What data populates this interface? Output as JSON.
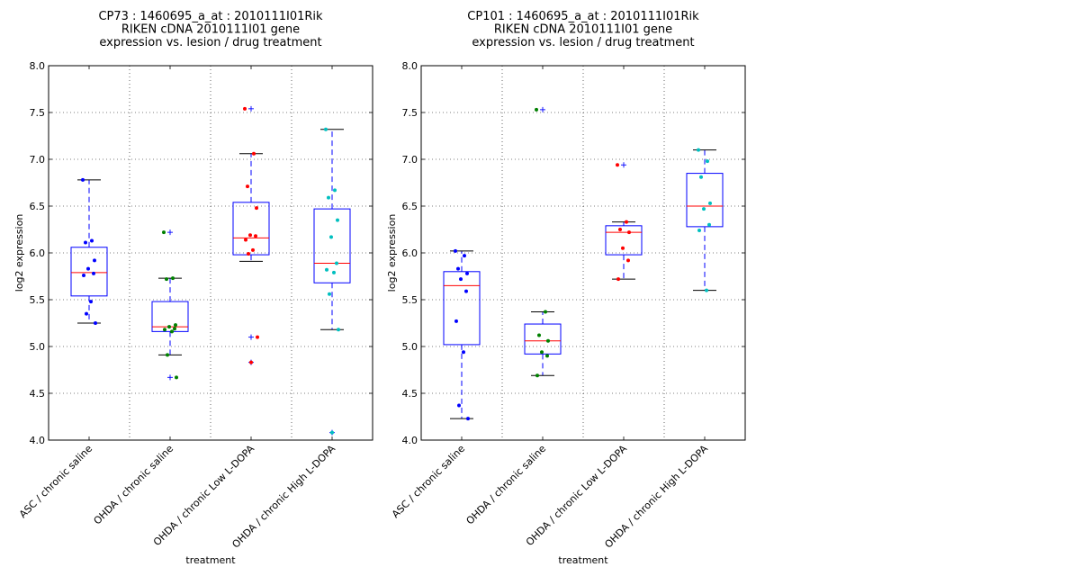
{
  "chart_data": [
    {
      "type": "boxplot",
      "title_lines": [
        "CP73 : 1460695_a_at : 2010111I01Rik",
        "RIKEN cDNA 2010111I01 gene",
        "expression vs. lesion / drug treatment"
      ],
      "xlabel": "treatment",
      "ylabel": "log2 expression",
      "ylim": [
        4.0,
        8.0
      ],
      "yticks": [
        "4.0",
        "4.5",
        "5.0",
        "5.5",
        "6.0",
        "6.5",
        "7.0",
        "7.5",
        "8.0"
      ],
      "grid": true,
      "categories": [
        "ASC / chronic saline",
        "OHDA / chronic saline",
        "OHDA / chronic Low L-DOPA",
        "OHDA / chronic High L-DOPA"
      ],
      "colors": [
        "#0000ff",
        "#008000",
        "#ff0000",
        "#00bfbf"
      ],
      "boxes": [
        {
          "q1": 5.54,
          "median": 5.79,
          "q3": 6.06,
          "whislo": 5.25,
          "whishi": 6.78,
          "fliers": []
        },
        {
          "q1": 5.16,
          "median": 5.21,
          "q3": 5.48,
          "whislo": 4.91,
          "whishi": 5.73,
          "fliers": [
            6.22,
            4.67
          ]
        },
        {
          "q1": 5.98,
          "median": 6.16,
          "q3": 6.54,
          "whislo": 5.91,
          "whishi": 7.06,
          "fliers": [
            7.54,
            5.1,
            4.83
          ]
        },
        {
          "q1": 5.68,
          "median": 5.89,
          "q3": 6.47,
          "whislo": 5.18,
          "whishi": 7.32,
          "fliers": [
            4.08
          ]
        }
      ],
      "points": [
        [
          6.78,
          6.13,
          6.11,
          5.92,
          5.83,
          5.78,
          5.76,
          5.48,
          5.35,
          5.25
        ],
        [
          6.22,
          5.73,
          5.72,
          5.23,
          5.21,
          5.19,
          5.18,
          5.16,
          4.91,
          4.67
        ],
        [
          7.54,
          7.06,
          6.71,
          6.48,
          6.19,
          6.18,
          6.14,
          6.03,
          5.99,
          5.1,
          4.83
        ],
        [
          7.32,
          6.67,
          6.59,
          6.35,
          6.17,
          5.89,
          5.82,
          5.79,
          5.56,
          5.18,
          4.08
        ]
      ]
    },
    {
      "type": "boxplot",
      "title_lines": [
        "CP101 : 1460695_a_at : 2010111I01Rik",
        "RIKEN cDNA 2010111I01 gene",
        "expression vs. lesion / drug treatment"
      ],
      "xlabel": "treatment",
      "ylabel": "log2 expression",
      "ylim": [
        4.0,
        8.0
      ],
      "yticks": [
        "4.0",
        "4.5",
        "5.0",
        "5.5",
        "6.0",
        "6.5",
        "7.0",
        "7.5",
        "8.0"
      ],
      "grid": true,
      "categories": [
        "ASC / chronic saline",
        "OHDA / chronic saline",
        "OHDA / chronic Low L-DOPA",
        "OHDA / chronic High L-DOPA"
      ],
      "colors": [
        "#0000ff",
        "#008000",
        "#ff0000",
        "#00bfbf"
      ],
      "boxes": [
        {
          "q1": 5.02,
          "median": 5.65,
          "q3": 5.8,
          "whislo": 4.23,
          "whishi": 6.02,
          "fliers": []
        },
        {
          "q1": 4.92,
          "median": 5.06,
          "q3": 5.24,
          "whislo": 4.69,
          "whishi": 5.37,
          "fliers": [
            7.53
          ]
        },
        {
          "q1": 5.98,
          "median": 6.22,
          "q3": 6.29,
          "whislo": 5.72,
          "whishi": 6.33,
          "fliers": [
            6.94
          ]
        },
        {
          "q1": 6.28,
          "median": 6.5,
          "q3": 6.85,
          "whislo": 5.6,
          "whishi": 7.1,
          "fliers": []
        }
      ],
      "points": [
        [
          6.02,
          5.97,
          5.83,
          5.78,
          5.72,
          5.59,
          5.27,
          4.94,
          4.37,
          4.23
        ],
        [
          7.53,
          5.37,
          5.12,
          5.06,
          4.94,
          4.9,
          4.69
        ],
        [
          6.94,
          6.33,
          6.25,
          6.22,
          6.05,
          5.92,
          5.72
        ],
        [
          7.1,
          6.98,
          6.81,
          6.53,
          6.47,
          6.3,
          6.24,
          5.6
        ]
      ]
    }
  ]
}
